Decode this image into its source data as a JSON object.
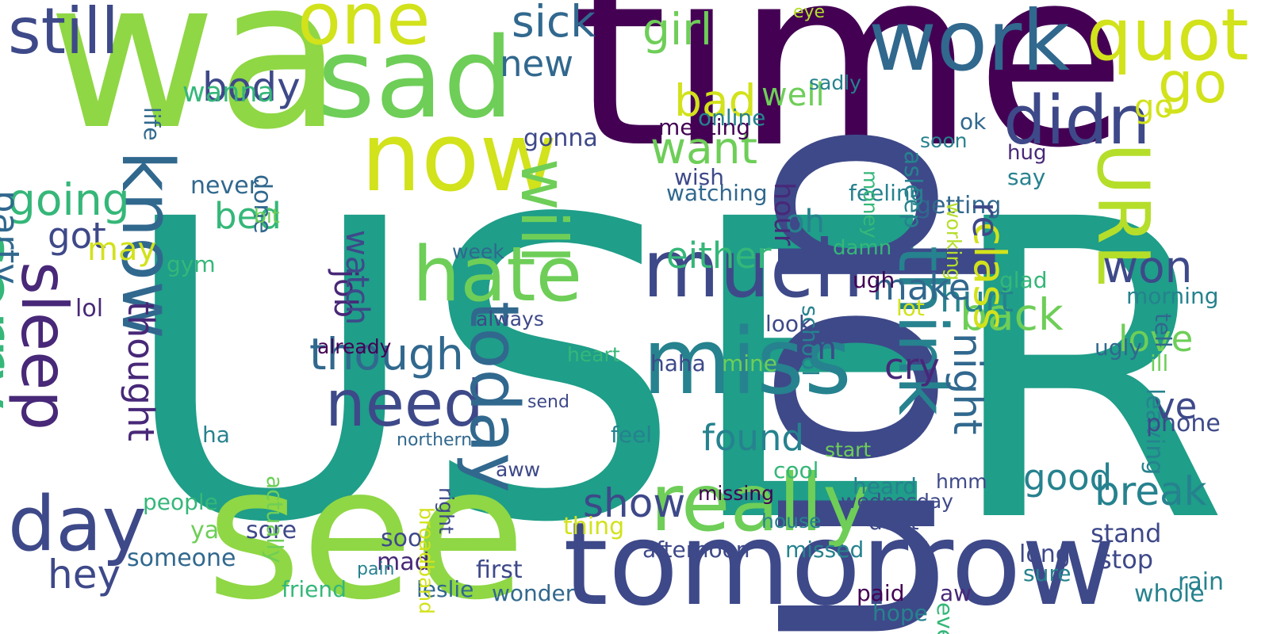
{
  "word_cloud": {
    "background": "#ffffff",
    "palette": "viridis",
    "words": [
      {
        "text": "USER",
        "color": "#1f9e89"
      },
      {
        "text": "wa",
        "color": "#8fd744"
      },
      {
        "text": "time",
        "color": "#440154"
      },
      {
        "text": "see",
        "color": "#8fd744"
      },
      {
        "text": "don",
        "color": "#3e4989"
      },
      {
        "text": "tomorrow",
        "color": "#3e4989"
      },
      {
        "text": "sad",
        "color": "#6ece58"
      },
      {
        "text": "one",
        "color": "#d2e21b"
      },
      {
        "text": "work",
        "color": "#31688e"
      },
      {
        "text": "now",
        "color": "#d2e21b"
      },
      {
        "text": "miss",
        "color": "#26828e"
      },
      {
        "text": "much",
        "color": "#3e4989"
      },
      {
        "text": "really",
        "color": "#6ece58"
      },
      {
        "text": "hate",
        "color": "#6ece58"
      },
      {
        "text": "need",
        "color": "#3e4989"
      },
      {
        "text": "know",
        "color": "#31688e"
      },
      {
        "text": "day",
        "color": "#3e4989"
      },
      {
        "text": "sorry",
        "color": "#35b779"
      },
      {
        "text": "today",
        "color": "#31688e"
      },
      {
        "text": "think",
        "color": "#26828e"
      },
      {
        "text": "still",
        "color": "#3e4989"
      },
      {
        "text": "quot",
        "color": "#d2e21b"
      },
      {
        "text": "didn",
        "color": "#3e4989"
      },
      {
        "text": "will",
        "color": "#6ece58"
      },
      {
        "text": "go",
        "color": "#d2e21b"
      },
      {
        "text": "URL",
        "color": "#b5de2b"
      },
      {
        "text": "sleep",
        "color": "#482878"
      },
      {
        "text": "girl",
        "color": "#6ece58"
      },
      {
        "text": "going",
        "color": "#35b779"
      },
      {
        "text": "want",
        "color": "#6ece58"
      },
      {
        "text": "bad",
        "color": "#d2e21b"
      },
      {
        "text": "new",
        "color": "#31688e"
      },
      {
        "text": "sick",
        "color": "#31688e"
      },
      {
        "text": "body",
        "color": "#3e4989"
      },
      {
        "text": "hey",
        "color": "#3e4989"
      },
      {
        "text": "party",
        "color": "#31688e"
      },
      {
        "text": "thought",
        "color": "#482878"
      },
      {
        "text": "though",
        "color": "#31688e"
      },
      {
        "text": "found",
        "color": "#26828e"
      },
      {
        "text": "show",
        "color": "#3e4989"
      },
      {
        "text": "good",
        "color": "#26828e"
      },
      {
        "text": "back",
        "color": "#6ece58"
      },
      {
        "text": "break",
        "color": "#26828e"
      },
      {
        "text": "won",
        "color": "#3e4989"
      },
      {
        "text": "hurt",
        "color": "#26828e"
      },
      {
        "text": "class",
        "color": "#d2e21b"
      },
      {
        "text": "night",
        "color": "#31688e"
      },
      {
        "text": "cry",
        "color": "#482878"
      },
      {
        "text": "make",
        "color": "#31688e"
      },
      {
        "text": "either",
        "color": "#35b779"
      },
      {
        "text": "job",
        "color": "#482878"
      },
      {
        "text": "watch",
        "color": "#3e4989"
      },
      {
        "text": "bed",
        "color": "#35b779"
      },
      {
        "text": "got",
        "color": "#3e4989"
      },
      {
        "text": "may",
        "color": "#d2e21b"
      },
      {
        "text": "ve",
        "color": "#3e4989"
      },
      {
        "text": "love",
        "color": "#6ece58"
      },
      {
        "text": "im",
        "color": "#3e4989"
      },
      {
        "text": "oh",
        "color": "#26828e"
      },
      {
        "text": "hour",
        "color": "#482878"
      },
      {
        "text": "well",
        "color": "#6ece58"
      },
      {
        "text": "go",
        "color": "#d2e21b"
      },
      {
        "text": "wanna",
        "color": "#35b779"
      },
      {
        "text": "never",
        "color": "#31688e"
      },
      {
        "text": "getting",
        "color": "#31688e"
      },
      {
        "text": "feeling",
        "color": "#26828e"
      },
      {
        "text": "watching",
        "color": "#31688e"
      },
      {
        "text": "meeting",
        "color": "#440154"
      },
      {
        "text": "online",
        "color": "#26828e"
      },
      {
        "text": "asleep",
        "color": "#26828e"
      },
      {
        "text": "people",
        "color": "#35b779"
      },
      {
        "text": "someone",
        "color": "#31688e"
      },
      {
        "text": "friend",
        "color": "#35b779"
      },
      {
        "text": "leslie",
        "color": "#31688e"
      },
      {
        "text": "wonder",
        "color": "#31688e"
      },
      {
        "text": "afternoon",
        "color": "#3e4989"
      },
      {
        "text": "missed",
        "color": "#26828e"
      },
      {
        "text": "paid",
        "color": "#440154"
      },
      {
        "text": "whole",
        "color": "#26828e"
      },
      {
        "text": "stand",
        "color": "#3e4989"
      },
      {
        "text": "stop",
        "color": "#3e4989"
      },
      {
        "text": "rain",
        "color": "#26828e"
      },
      {
        "text": "leaving",
        "color": "#26828e"
      },
      {
        "text": "phone",
        "color": "#3e4989"
      },
      {
        "text": "morning",
        "color": "#26828e"
      },
      {
        "text": "ugly",
        "color": "#31688e"
      },
      {
        "text": "ill",
        "color": "#6ece58"
      },
      {
        "text": "tell",
        "color": "#31688e"
      },
      {
        "text": "glad",
        "color": "#35b779"
      },
      {
        "text": "school",
        "color": "#26828e"
      },
      {
        "text": "damn",
        "color": "#35b779"
      },
      {
        "text": "say",
        "color": "#26828e"
      },
      {
        "text": "hug",
        "color": "#482878"
      },
      {
        "text": "ok",
        "color": "#31688e"
      },
      {
        "text": "soon",
        "color": "#26828e"
      },
      {
        "text": "sadly",
        "color": "#26828e"
      },
      {
        "text": "wish",
        "color": "#3e4989"
      },
      {
        "text": "gonna",
        "color": "#3e4989"
      },
      {
        "text": "done",
        "color": "#31688e"
      },
      {
        "text": "life",
        "color": "#31688e"
      },
      {
        "text": "gym",
        "color": "#35b779"
      },
      {
        "text": "lol",
        "color": "#482878"
      },
      {
        "text": "ya",
        "color": "#6ece58"
      },
      {
        "text": "sore",
        "color": "#3e4989"
      },
      {
        "text": "soo",
        "color": "#3e4989"
      },
      {
        "text": "mad",
        "color": "#482878"
      },
      {
        "text": "first",
        "color": "#3e4989"
      },
      {
        "text": "thing",
        "color": "#d2e21b"
      },
      {
        "text": "cool",
        "color": "#35b779"
      },
      {
        "text": "heard",
        "color": "#26828e"
      },
      {
        "text": "dont",
        "color": "#3e4989"
      },
      {
        "text": "long",
        "color": "#3e4989"
      },
      {
        "text": "sure",
        "color": "#26828e"
      },
      {
        "text": "even",
        "color": "#35b779"
      },
      {
        "text": "aw",
        "color": "#482878"
      },
      {
        "text": "hope",
        "color": "#26828e"
      },
      {
        "text": "feel",
        "color": "#26828e"
      },
      {
        "text": "look",
        "color": "#3e4989"
      },
      {
        "text": "haha",
        "color": "#3e4989"
      },
      {
        "text": "mine",
        "color": "#6ece58"
      },
      {
        "text": "lot",
        "color": "#d2e21b"
      },
      {
        "text": "ugh",
        "color": "#440154"
      },
      {
        "text": "already",
        "color": "#440154"
      },
      {
        "text": "always",
        "color": "#3e4989"
      },
      {
        "text": "week",
        "color": "#31688e"
      },
      {
        "text": "heart",
        "color": "#35b779"
      },
      {
        "text": "actually",
        "color": "#6ece58"
      },
      {
        "text": "broadband",
        "color": "#d2e21b"
      },
      {
        "text": "right",
        "color": "#3e4989"
      },
      {
        "text": "hmm",
        "color": "#3e4989"
      },
      {
        "text": "start",
        "color": "#6ece58"
      },
      {
        "text": "working",
        "color": "#b5de2b"
      },
      {
        "text": "money",
        "color": "#35b779"
      },
      {
        "text": "ha",
        "color": "#26828e"
      },
      {
        "text": "bit",
        "color": "#6ece58"
      },
      {
        "text": "aww",
        "color": "#3e4989"
      },
      {
        "text": "missing",
        "color": "#440154"
      },
      {
        "text": "wednesday",
        "color": "#3e4989"
      },
      {
        "text": "house",
        "color": "#26828e"
      },
      {
        "text": "northern",
        "color": "#31688e"
      },
      {
        "text": "send",
        "color": "#3e4989"
      },
      {
        "text": "eye",
        "color": "#b5de2b"
      },
      {
        "text": "pain",
        "color": "#26828e"
      },
      {
        "text": "re",
        "color": "#3e4989"
      }
    ]
  }
}
